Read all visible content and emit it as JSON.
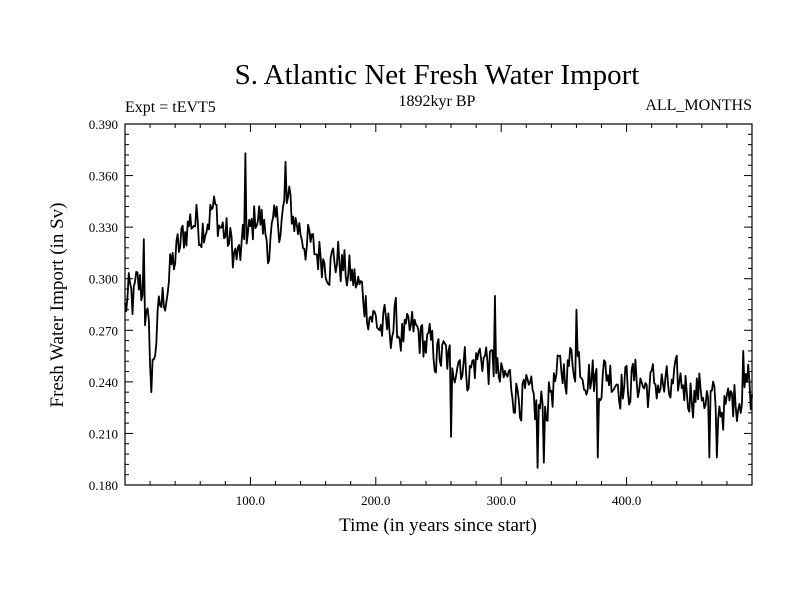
{
  "chart_data": {
    "type": "line",
    "title": "S. Atlantic Net Fresh Water Import",
    "subtitle_left": "Expt = tEVT5",
    "subtitle_center": "1892kyr BP",
    "subtitle_right": "ALL_MONTHS",
    "xlabel": "Time (in years since start)",
    "ylabel": "Fresh Water Import (in Sv)",
    "xlim": [
      0,
      500
    ],
    "ylim": [
      0.18,
      0.39
    ],
    "xticks": [
      100,
      200,
      300,
      400
    ],
    "xtick_labels": [
      "100.0",
      "200.0",
      "300.0",
      "400.0"
    ],
    "yticks": [
      0.18,
      0.21,
      0.24,
      0.27,
      0.3,
      0.33,
      0.36,
      0.39
    ],
    "ytick_labels": [
      "0.180",
      "0.210",
      "0.240",
      "0.270",
      "0.300",
      "0.330",
      "0.360",
      "0.390"
    ],
    "grid": false,
    "series": [
      {
        "name": "S. Atlantic Net Fresh Water Import",
        "color": "#000000",
        "x_start": 0,
        "x_step": 1,
        "anchors": [
          [
            0,
            0.282
          ],
          [
            3,
            0.29
          ],
          [
            6,
            0.285
          ],
          [
            9,
            0.293
          ],
          [
            12,
            0.295
          ],
          [
            15,
            0.288
          ],
          [
            18,
            0.272
          ],
          [
            20,
            0.255
          ],
          [
            22,
            0.248
          ],
          [
            25,
            0.268
          ],
          [
            28,
            0.282
          ],
          [
            32,
            0.292
          ],
          [
            36,
            0.303
          ],
          [
            40,
            0.312
          ],
          [
            44,
            0.318
          ],
          [
            47,
            0.325
          ],
          [
            50,
            0.332
          ],
          [
            55,
            0.335
          ],
          [
            60,
            0.33
          ],
          [
            65,
            0.336
          ],
          [
            70,
            0.34
          ],
          [
            75,
            0.333
          ],
          [
            80,
            0.326
          ],
          [
            85,
            0.318
          ],
          [
            90,
            0.311
          ],
          [
            95,
            0.318
          ],
          [
            100,
            0.325
          ],
          [
            105,
            0.34
          ],
          [
            110,
            0.33
          ],
          [
            115,
            0.32
          ],
          [
            120,
            0.328
          ],
          [
            125,
            0.338
          ],
          [
            130,
            0.343
          ],
          [
            135,
            0.335
          ],
          [
            140,
            0.328
          ],
          [
            145,
            0.322
          ],
          [
            150,
            0.315
          ],
          [
            155,
            0.315
          ],
          [
            160,
            0.312
          ],
          [
            165,
            0.31
          ],
          [
            170,
            0.312
          ],
          [
            175,
            0.305
          ],
          [
            180,
            0.301
          ],
          [
            185,
            0.297
          ],
          [
            190,
            0.29
          ],
          [
            195,
            0.282
          ],
          [
            200,
            0.275
          ],
          [
            205,
            0.271
          ],
          [
            210,
            0.27
          ],
          [
            215,
            0.275
          ],
          [
            220,
            0.268
          ],
          [
            225,
            0.264
          ],
          [
            230,
            0.27
          ],
          [
            235,
            0.266
          ],
          [
            240,
            0.262
          ],
          [
            245,
            0.258
          ],
          [
            250,
            0.255
          ],
          [
            255,
            0.254
          ],
          [
            260,
            0.25
          ],
          [
            265,
            0.256
          ],
          [
            270,
            0.251
          ],
          [
            275,
            0.246
          ],
          [
            280,
            0.252
          ],
          [
            285,
            0.257
          ],
          [
            290,
            0.25
          ],
          [
            295,
            0.245
          ],
          [
            300,
            0.239
          ],
          [
            305,
            0.242
          ],
          [
            310,
            0.236
          ],
          [
            315,
            0.233
          ],
          [
            320,
            0.23
          ],
          [
            325,
            0.226
          ],
          [
            330,
            0.223
          ],
          [
            335,
            0.225
          ],
          [
            340,
            0.236
          ],
          [
            345,
            0.242
          ],
          [
            350,
            0.247
          ],
          [
            355,
            0.251
          ],
          [
            360,
            0.255
          ],
          [
            365,
            0.25
          ],
          [
            370,
            0.245
          ],
          [
            375,
            0.242
          ],
          [
            380,
            0.243
          ],
          [
            385,
            0.246
          ],
          [
            390,
            0.244
          ],
          [
            395,
            0.24
          ],
          [
            400,
            0.238
          ],
          [
            405,
            0.241
          ],
          [
            410,
            0.242
          ],
          [
            415,
            0.236
          ],
          [
            420,
            0.237
          ],
          [
            425,
            0.24
          ],
          [
            430,
            0.236
          ],
          [
            435,
            0.233
          ],
          [
            440,
            0.238
          ],
          [
            445,
            0.24
          ],
          [
            450,
            0.236
          ],
          [
            455,
            0.233
          ],
          [
            460,
            0.236
          ],
          [
            465,
            0.23
          ],
          [
            470,
            0.226
          ],
          [
            475,
            0.226
          ],
          [
            480,
            0.224
          ],
          [
            485,
            0.23
          ],
          [
            490,
            0.233
          ],
          [
            495,
            0.237
          ],
          [
            500,
            0.234
          ]
        ],
        "extremes": [
          [
            21,
            0.234
          ],
          [
            15,
            0.323
          ],
          [
            96,
            0.373
          ],
          [
            128,
            0.368
          ],
          [
            260,
            0.208
          ],
          [
            295,
            0.29
          ],
          [
            329,
            0.19
          ],
          [
            334,
            0.193
          ],
          [
            360,
            0.282
          ],
          [
            377,
            0.196
          ],
          [
            466,
            0.196
          ],
          [
            472,
            0.196
          ],
          [
            493,
            0.258
          ],
          [
            497,
            0.25
          ]
        ],
        "amplitude": 0.011
      }
    ]
  }
}
